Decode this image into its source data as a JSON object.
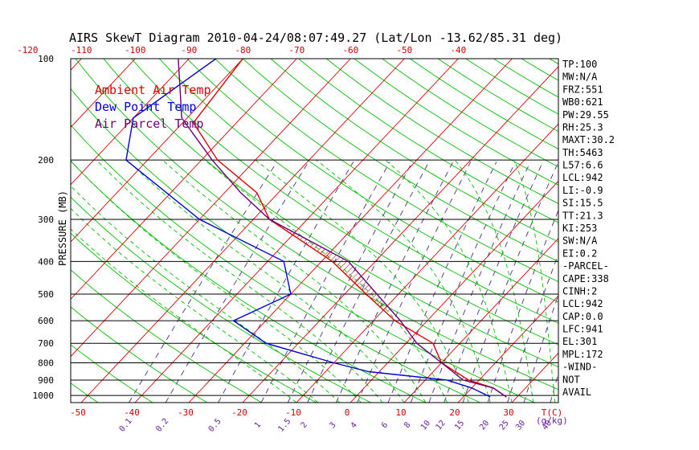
{
  "chart_data": {
    "type": "line",
    "title": "AIRS SkewT Diagram 2010-04-24/08:07:49.27 (Lat/Lon -13.62/85.31 deg)",
    "ylabel": "PRESSURE (MB)",
    "y_scale": "log",
    "ylim": [
      1050,
      100
    ],
    "pressure_ticks": [
      "100",
      "200",
      "300",
      "400",
      "500",
      "600",
      "700",
      "800",
      "900",
      "1000"
    ],
    "top_temp_ticks": [
      "-120",
      "-110",
      "-100",
      "-90",
      "-80",
      "-70",
      "-60",
      "-50",
      "-40"
    ],
    "bottom_temp_ticks": [
      "-50",
      "-40",
      "-30",
      "-20",
      "-10",
      "0",
      "10",
      "20",
      "30"
    ],
    "bottom_temp_unit": "T(C)",
    "mixing_ratio_ticks": [
      "0.1",
      "0.2",
      "0.5",
      "1",
      "1.5",
      "2",
      "3",
      "4",
      "6",
      "8",
      "10",
      "12",
      "15",
      "20",
      "25",
      "30",
      "40"
    ],
    "mixing_ratio_unit": "(g/kg)",
    "legend": [
      {
        "name": "Ambient Air Temp",
        "color": "#e00000"
      },
      {
        "name": "Dew Point Temp",
        "color": "#0000e0"
      },
      {
        "name": "Air Parcel Temp",
        "color": "#6a0078"
      }
    ],
    "series": [
      {
        "name": "Ambient Air Temp",
        "color": "#e00000",
        "points": [
          {
            "p": 100,
            "t": -80
          },
          {
            "p": 155,
            "t": -78
          },
          {
            "p": 200,
            "t": -67
          },
          {
            "p": 250,
            "t": -54
          },
          {
            "p": 300,
            "t": -47
          },
          {
            "p": 400,
            "t": -28
          },
          {
            "p": 500,
            "t": -16
          },
          {
            "p": 600,
            "t": -6
          },
          {
            "p": 700,
            "t": 5
          },
          {
            "p": 800,
            "t": 10
          },
          {
            "p": 900,
            "t": 18
          },
          {
            "p": 950,
            "t": 24
          },
          {
            "p": 1010,
            "t": 28
          }
        ]
      },
      {
        "name": "Dew Point Temp",
        "color": "#0000e0",
        "points": [
          {
            "p": 100,
            "t": -85
          },
          {
            "p": 150,
            "t": -90
          },
          {
            "p": 200,
            "t": -84
          },
          {
            "p": 300,
            "t": -60
          },
          {
            "p": 400,
            "t": -37
          },
          {
            "p": 500,
            "t": -30
          },
          {
            "p": 600,
            "t": -36
          },
          {
            "p": 700,
            "t": -26
          },
          {
            "p": 800,
            "t": -10
          },
          {
            "p": 850,
            "t": -2
          },
          {
            "p": 900,
            "t": 14
          },
          {
            "p": 950,
            "t": 20
          },
          {
            "p": 1010,
            "t": 25
          }
        ]
      },
      {
        "name": "Air Parcel Temp",
        "color": "#6a0078",
        "points": [
          {
            "p": 100,
            "t": -92
          },
          {
            "p": 150,
            "t": -81
          },
          {
            "p": 200,
            "t": -68
          },
          {
            "p": 250,
            "t": -57
          },
          {
            "p": 300,
            "t": -47
          },
          {
            "p": 400,
            "t": -25
          },
          {
            "p": 500,
            "t": -14
          },
          {
            "p": 600,
            "t": -5
          },
          {
            "p": 700,
            "t": 2
          },
          {
            "p": 800,
            "t": 10
          },
          {
            "p": 900,
            "t": 17
          },
          {
            "p": 950,
            "t": 24
          },
          {
            "p": 1010,
            "t": 28
          }
        ]
      }
    ],
    "indices": [
      "TP:100",
      "MW:N/A",
      "FRZ:551",
      "WB0:621",
      "PW:29.55",
      "RH:25.3",
      "MAXT:30.2",
      "TH:5463",
      "L57:6.6",
      "LCL:942",
      "LI:-0.9",
      "SI:15.5",
      "TT:21.3",
      "KI:253",
      "SW:N/A",
      "EI:0.2",
      "-PARCEL-",
      "CAPE:338",
      "CINH:2",
      "LCL:942",
      "CAP:0.0",
      "LFC:941",
      "EL:301",
      "MPL:172",
      "-WIND-",
      "NOT",
      "AVAIL"
    ],
    "colors": {
      "isotherm": "#e00000",
      "dry_adiabat": "#00c000",
      "moist_adiabat": "#00c000",
      "mixing_ratio": "#4b2b8a",
      "grid": "#000000",
      "cape_hatch": "#a00000"
    }
  }
}
